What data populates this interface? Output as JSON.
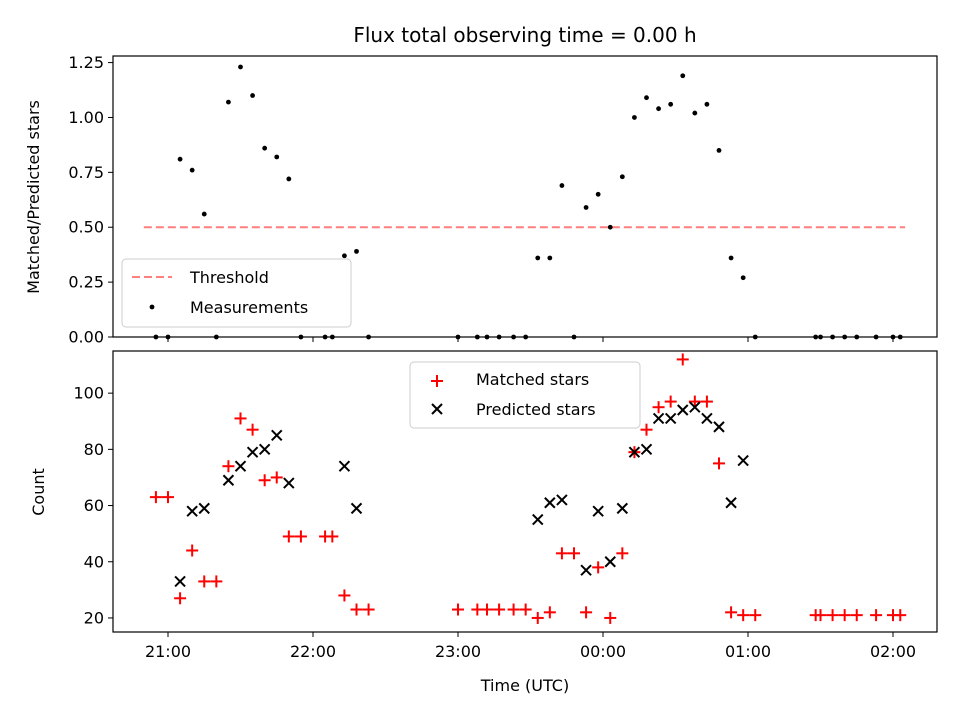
{
  "chart_data": [
    {
      "type": "scatter",
      "title": "Flux total observing time = 0.00 h",
      "xlabel": "",
      "ylabel": "Matched/Predicted stars",
      "ylim": [
        0,
        1.28
      ],
      "yticks": [
        "0.00",
        "0.25",
        "0.50",
        "0.75",
        "1.00",
        "1.25"
      ],
      "legend_position": "lower-left",
      "grid": false,
      "threshold": {
        "name": "Threshold",
        "value": 0.5,
        "x_start": "20:50",
        "x_end": "02:05",
        "color": "#ff7f7f"
      },
      "series": [
        {
          "name": "Measurements",
          "color": "#000000",
          "points": [
            [
              "20:55",
              0
            ],
            [
              "21:00",
              0
            ],
            [
              "21:05",
              0.81
            ],
            [
              "21:10",
              0.76
            ],
            [
              "21:15",
              0.56
            ],
            [
              "21:20",
              0
            ],
            [
              "21:25",
              1.07
            ],
            [
              "21:30",
              1.23
            ],
            [
              "21:35",
              1.1
            ],
            [
              "21:40",
              0.86
            ],
            [
              "21:45",
              0.82
            ],
            [
              "21:50",
              0.72
            ],
            [
              "21:55",
              0
            ],
            [
              "22:05",
              0
            ],
            [
              "22:08",
              0
            ],
            [
              "22:13",
              0.37
            ],
            [
              "22:18",
              0.39
            ],
            [
              "22:23",
              0
            ],
            [
              "23:00",
              0
            ],
            [
              "23:08",
              0
            ],
            [
              "23:12",
              0
            ],
            [
              "23:17",
              0
            ],
            [
              "23:23",
              0
            ],
            [
              "23:28",
              0
            ],
            [
              "23:33",
              0.36
            ],
            [
              "23:38",
              0.36
            ],
            [
              "23:43",
              0.69
            ],
            [
              "23:48",
              0
            ],
            [
              "23:53",
              0.59
            ],
            [
              "23:58",
              0.65
            ],
            [
              "00:03",
              0.5
            ],
            [
              "00:08",
              0.73
            ],
            [
              "00:13",
              1.0
            ],
            [
              "00:18",
              1.09
            ],
            [
              "00:23",
              1.04
            ],
            [
              "00:28",
              1.06
            ],
            [
              "00:33",
              1.19
            ],
            [
              "00:38",
              1.02
            ],
            [
              "00:43",
              1.06
            ],
            [
              "00:48",
              0.85
            ],
            [
              "00:53",
              0.36
            ],
            [
              "00:58",
              0.27
            ],
            [
              "01:03",
              0
            ],
            [
              "01:28",
              0
            ],
            [
              "01:30",
              0
            ],
            [
              "01:35",
              0
            ],
            [
              "01:40",
              0
            ],
            [
              "01:45",
              0
            ],
            [
              "01:53",
              0
            ],
            [
              "02:00",
              0
            ],
            [
              "02:03",
              0
            ]
          ]
        }
      ]
    },
    {
      "type": "scatter",
      "title": "",
      "xlabel": "Time (UTC)",
      "ylabel": "Count",
      "ylim": [
        15,
        115
      ],
      "yticks": [
        "20",
        "40",
        "60",
        "80",
        "100"
      ],
      "xticks": [
        "21:00",
        "22:00",
        "23:00",
        "00:00",
        "01:00",
        "02:00"
      ],
      "legend_position": "upper-center",
      "grid": false,
      "series": [
        {
          "name": "Matched stars",
          "color": "#ff0000",
          "marker": "plus",
          "points": [
            [
              "20:55",
              63
            ],
            [
              "21:00",
              63
            ],
            [
              "21:05",
              27
            ],
            [
              "21:10",
              44
            ],
            [
              "21:15",
              33
            ],
            [
              "21:20",
              33
            ],
            [
              "21:25",
              74
            ],
            [
              "21:30",
              91
            ],
            [
              "21:35",
              87
            ],
            [
              "21:40",
              69
            ],
            [
              "21:45",
              70
            ],
            [
              "21:50",
              49
            ],
            [
              "21:55",
              49
            ],
            [
              "22:05",
              49
            ],
            [
              "22:08",
              49
            ],
            [
              "22:13",
              28
            ],
            [
              "22:18",
              23
            ],
            [
              "22:23",
              23
            ],
            [
              "23:00",
              23
            ],
            [
              "23:08",
              23
            ],
            [
              "23:12",
              23
            ],
            [
              "23:17",
              23
            ],
            [
              "23:23",
              23
            ],
            [
              "23:28",
              23
            ],
            [
              "23:33",
              20
            ],
            [
              "23:38",
              22
            ],
            [
              "23:43",
              43
            ],
            [
              "23:48",
              43
            ],
            [
              "23:53",
              22
            ],
            [
              "23:58",
              38
            ],
            [
              "00:03",
              20
            ],
            [
              "00:08",
              43
            ],
            [
              "00:13",
              79
            ],
            [
              "00:18",
              87
            ],
            [
              "00:23",
              95
            ],
            [
              "00:28",
              97
            ],
            [
              "00:33",
              112
            ],
            [
              "00:38",
              97
            ],
            [
              "00:43",
              97
            ],
            [
              "00:48",
              75
            ],
            [
              "00:53",
              22
            ],
            [
              "00:58",
              21
            ],
            [
              "01:03",
              21
            ],
            [
              "01:28",
              21
            ],
            [
              "01:30",
              21
            ],
            [
              "01:35",
              21
            ],
            [
              "01:40",
              21
            ],
            [
              "01:45",
              21
            ],
            [
              "01:53",
              21
            ],
            [
              "02:00",
              21
            ],
            [
              "02:03",
              21
            ]
          ]
        },
        {
          "name": "Predicted stars",
          "color": "#000000",
          "marker": "x",
          "points": [
            [
              "21:05",
              33
            ],
            [
              "21:10",
              58
            ],
            [
              "21:15",
              59
            ],
            [
              "21:25",
              69
            ],
            [
              "21:30",
              74
            ],
            [
              "21:35",
              79
            ],
            [
              "21:40",
              80
            ],
            [
              "21:45",
              85
            ],
            [
              "21:50",
              68
            ],
            [
              "22:13",
              74
            ],
            [
              "22:18",
              59
            ],
            [
              "23:33",
              55
            ],
            [
              "23:38",
              61
            ],
            [
              "23:43",
              62
            ],
            [
              "23:53",
              37
            ],
            [
              "23:58",
              58
            ],
            [
              "00:03",
              40
            ],
            [
              "00:08",
              59
            ],
            [
              "00:13",
              79
            ],
            [
              "00:18",
              80
            ],
            [
              "00:23",
              91
            ],
            [
              "00:28",
              91
            ],
            [
              "00:33",
              94
            ],
            [
              "00:38",
              95
            ],
            [
              "00:43",
              91
            ],
            [
              "00:48",
              88
            ],
            [
              "00:53",
              61
            ],
            [
              "00:58",
              76
            ]
          ]
        }
      ]
    }
  ]
}
